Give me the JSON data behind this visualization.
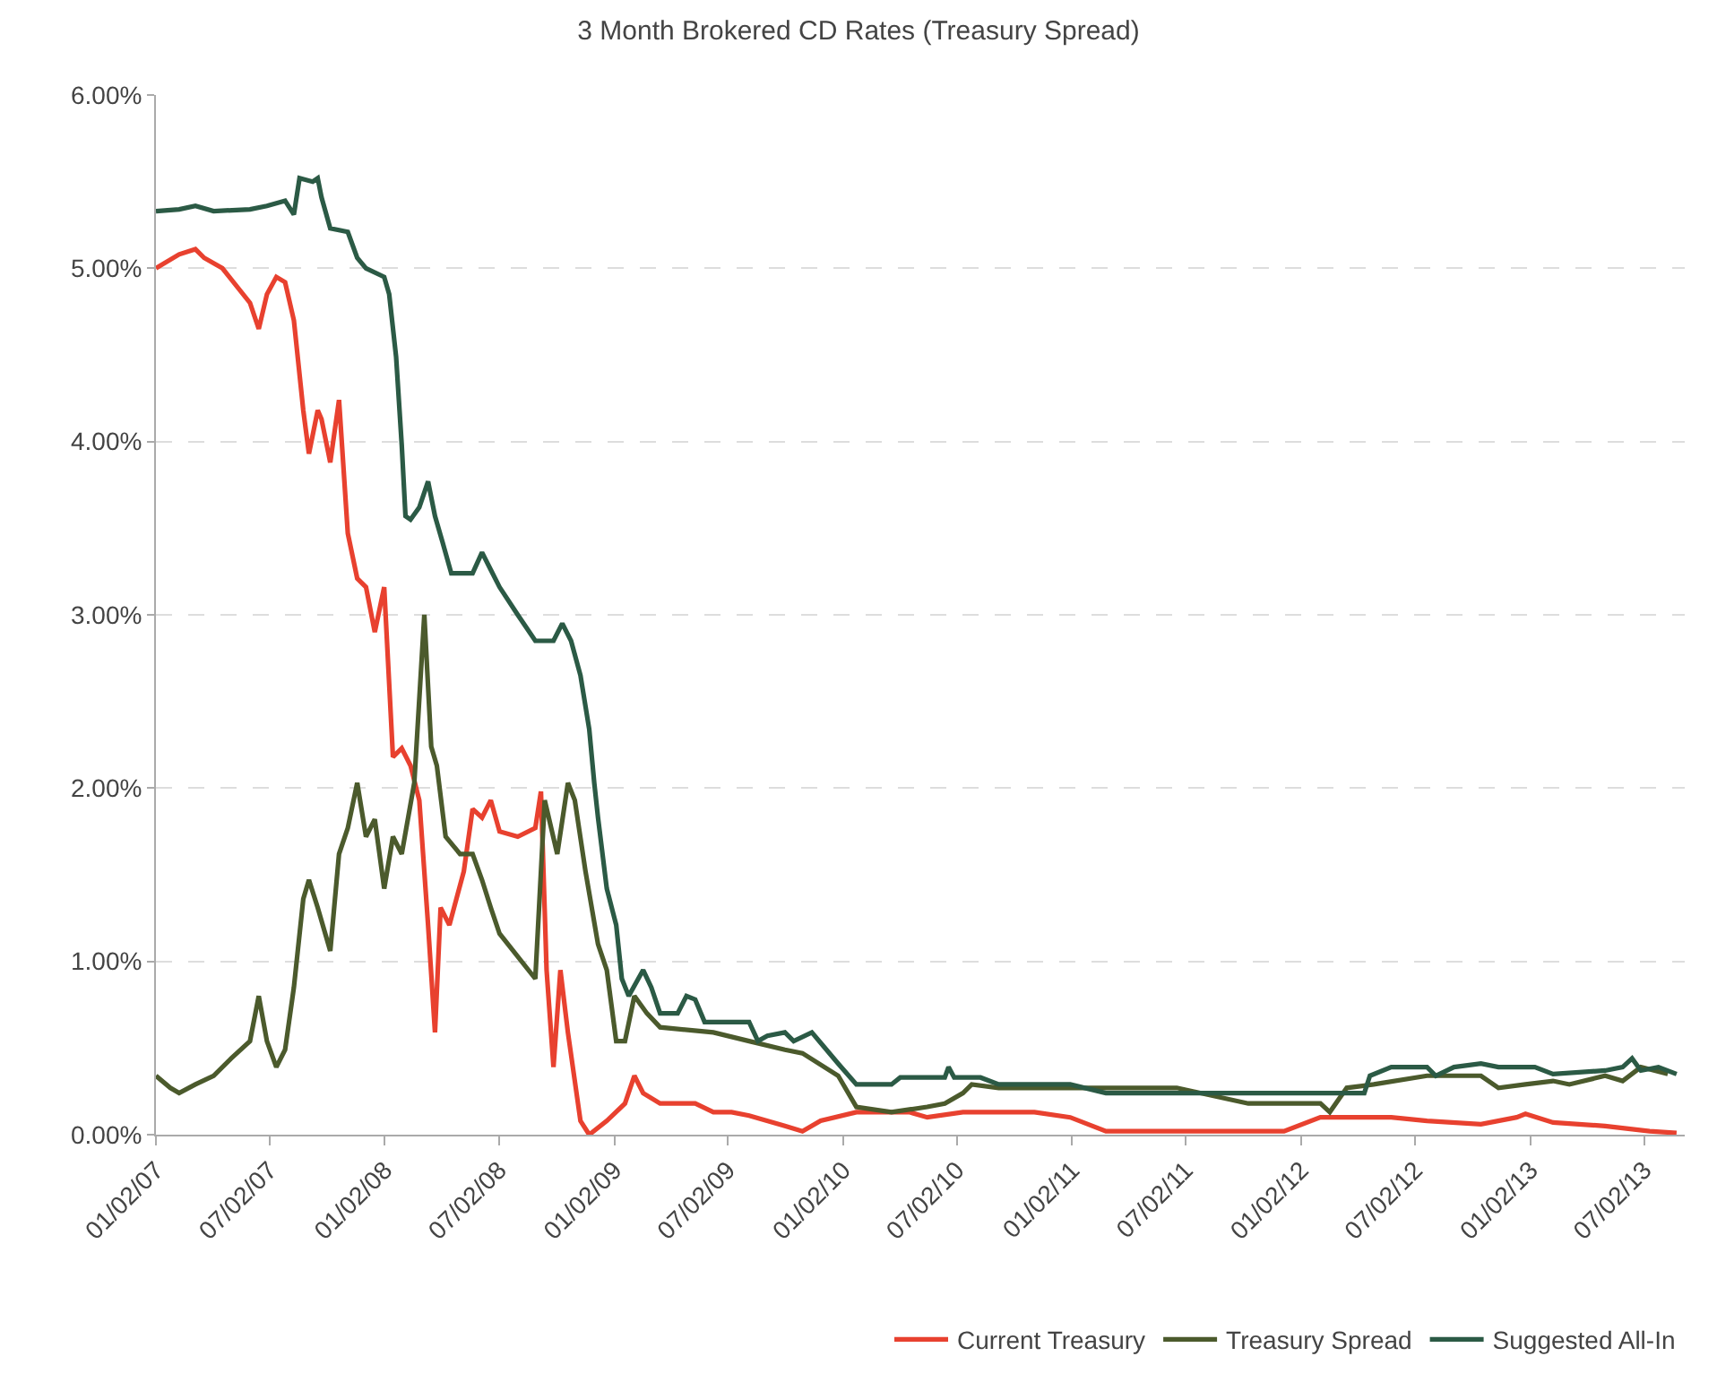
{
  "chart_data": {
    "type": "line",
    "title": "3 Month Brokered CD Rates (Treasury Spread)",
    "xlim": [
      "2007-01-02",
      "2013-09-05"
    ],
    "xticks": [
      {
        "value": "2007-01-02",
        "label": "01/02/07"
      },
      {
        "value": "2007-07-02",
        "label": "07/02/07"
      },
      {
        "value": "2008-01-02",
        "label": "01/02/08"
      },
      {
        "value": "2008-07-02",
        "label": "07/02/08"
      },
      {
        "value": "2009-01-02",
        "label": "01/02/09"
      },
      {
        "value": "2009-07-02",
        "label": "07/02/09"
      },
      {
        "value": "2010-01-02",
        "label": "01/02/10"
      },
      {
        "value": "2010-07-02",
        "label": "07/02/10"
      },
      {
        "value": "2011-01-02",
        "label": "01/02/11"
      },
      {
        "value": "2011-07-02",
        "label": "07/02/11"
      },
      {
        "value": "2012-01-02",
        "label": "01/02/12"
      },
      {
        "value": "2012-07-02",
        "label": "07/02/12"
      },
      {
        "value": "2013-01-02",
        "label": "01/02/13"
      },
      {
        "value": "2013-07-02",
        "label": "07/02/13"
      }
    ],
    "ylim": [
      0,
      6
    ],
    "yticks": [
      {
        "value": 0,
        "label": "0.00%"
      },
      {
        "value": 1,
        "label": "1.00%"
      },
      {
        "value": 2,
        "label": "2.00%"
      },
      {
        "value": 3,
        "label": "3.00%"
      },
      {
        "value": 4,
        "label": "4.00%"
      },
      {
        "value": 5,
        "label": "5.00%"
      },
      {
        "value": 6,
        "label": "6.00%"
      }
    ],
    "grid": "y",
    "legend": "bottom right",
    "line_style": "solid",
    "marker": "none",
    "series": [
      {
        "name": "Current Treasury",
        "color": "#e8412f",
        "x": [
          "2007-01-02",
          "2007-02-08",
          "2007-03-06",
          "2007-03-20",
          "2007-04-18",
          "2007-06-01",
          "2007-06-15",
          "2007-06-28",
          "2007-07-13",
          "2007-07-27",
          "2007-08-10",
          "2007-08-25",
          "2007-09-03",
          "2007-09-17",
          "2007-09-23",
          "2007-10-07",
          "2007-10-21",
          "2007-11-04",
          "2007-11-19",
          "2007-12-03",
          "2007-12-17",
          "2008-01-01",
          "2008-01-15",
          "2008-01-29",
          "2008-02-12",
          "2008-02-26",
          "2008-03-11",
          "2008-03-22",
          "2008-03-31",
          "2008-04-14",
          "2008-05-07",
          "2008-05-21",
          "2008-06-05",
          "2008-06-19",
          "2008-07-03",
          "2008-08-01",
          "2008-08-29",
          "2008-09-07",
          "2008-09-16",
          "2008-09-27",
          "2008-10-08",
          "2008-10-20",
          "2008-11-09",
          "2008-11-23",
          "2008-12-21",
          "2009-01-19",
          "2009-02-03",
          "2009-02-17",
          "2009-03-16",
          "2009-05-11",
          "2009-06-09",
          "2009-07-08",
          "2009-08-05",
          "2009-10-01",
          "2009-10-29",
          "2009-11-27",
          "2010-01-23",
          "2010-04-17",
          "2010-05-16",
          "2010-07-12",
          "2010-09-07",
          "2010-11-03",
          "2010-12-30",
          "2011-02-25",
          "2011-06-18",
          "2011-10-10",
          "2011-12-06",
          "2012-02-02",
          "2012-05-25",
          "2012-07-21",
          "2012-10-15",
          "2012-12-11",
          "2012-12-25",
          "2013-02-07",
          "2013-05-01",
          "2013-07-11",
          "2013-08-23"
        ],
        "values": [
          5.0,
          5.08,
          5.11,
          5.06,
          5.0,
          4.8,
          4.65,
          4.85,
          4.95,
          4.92,
          4.7,
          4.18,
          3.93,
          4.18,
          4.13,
          3.88,
          4.24,
          3.47,
          3.21,
          3.16,
          2.9,
          3.16,
          2.18,
          2.23,
          2.13,
          1.93,
          1.21,
          0.59,
          1.31,
          1.21,
          1.52,
          1.88,
          1.83,
          1.93,
          1.75,
          1.72,
          1.77,
          1.98,
          0.95,
          0.39,
          0.95,
          0.59,
          0.08,
          0.0,
          0.08,
          0.18,
          0.34,
          0.24,
          0.18,
          0.18,
          0.13,
          0.13,
          0.11,
          0.05,
          0.02,
          0.08,
          0.13,
          0.13,
          0.1,
          0.13,
          0.13,
          0.13,
          0.1,
          0.02,
          0.02,
          0.02,
          0.02,
          0.1,
          0.1,
          0.08,
          0.06,
          0.1,
          0.12,
          0.07,
          0.05,
          0.02,
          0.01
        ]
      },
      {
        "name": "Treasury Spread",
        "color": "#4b5a2c",
        "x": [
          "2007-01-02",
          "2007-01-25",
          "2007-02-08",
          "2007-03-06",
          "2007-04-04",
          "2007-05-02",
          "2007-06-01",
          "2007-06-15",
          "2007-06-28",
          "2007-07-13",
          "2007-07-27",
          "2007-08-10",
          "2007-08-25",
          "2007-09-03",
          "2007-09-17",
          "2007-10-07",
          "2007-10-21",
          "2007-11-04",
          "2007-11-19",
          "2007-12-03",
          "2007-12-17",
          "2008-01-01",
          "2008-01-15",
          "2008-01-29",
          "2008-02-18",
          "2008-03-05",
          "2008-03-16",
          "2008-03-25",
          "2008-04-08",
          "2008-05-01",
          "2008-05-21",
          "2008-06-05",
          "2008-06-19",
          "2008-07-03",
          "2008-08-29",
          "2008-09-13",
          "2008-10-03",
          "2008-10-20",
          "2008-10-31",
          "2008-11-17",
          "2008-12-07",
          "2008-12-21",
          "2009-01-05",
          "2009-01-19",
          "2009-02-03",
          "2009-02-23",
          "2009-03-16",
          "2009-06-09",
          "2009-08-05",
          "2009-10-01",
          "2009-10-29",
          "2009-12-25",
          "2010-01-23",
          "2010-03-20",
          "2010-05-16",
          "2010-06-13",
          "2010-07-12",
          "2010-07-26",
          "2010-09-07",
          "2010-11-03",
          "2010-12-30",
          "2011-06-18",
          "2011-10-10",
          "2012-02-02",
          "2012-02-17",
          "2012-03-15",
          "2012-04-27",
          "2012-07-21",
          "2012-10-15",
          "2012-11-12",
          "2012-12-25",
          "2013-02-07",
          "2013-03-05",
          "2013-05-01",
          "2013-05-29",
          "2013-06-27",
          "2013-08-09"
        ],
        "values": [
          0.34,
          0.27,
          0.24,
          0.29,
          0.34,
          0.44,
          0.54,
          0.8,
          0.54,
          0.39,
          0.49,
          0.85,
          1.36,
          1.47,
          1.31,
          1.06,
          1.62,
          1.77,
          2.03,
          1.72,
          1.82,
          1.42,
          1.72,
          1.62,
          2.03,
          3.0,
          2.24,
          2.13,
          1.72,
          1.62,
          1.62,
          1.47,
          1.31,
          1.16,
          0.9,
          1.93,
          1.62,
          2.03,
          1.93,
          1.52,
          1.1,
          0.95,
          0.54,
          0.54,
          0.8,
          0.7,
          0.62,
          0.59,
          0.54,
          0.49,
          0.47,
          0.34,
          0.16,
          0.13,
          0.16,
          0.18,
          0.24,
          0.29,
          0.27,
          0.27,
          0.27,
          0.27,
          0.18,
          0.18,
          0.13,
          0.27,
          0.29,
          0.34,
          0.34,
          0.27,
          0.29,
          0.31,
          0.29,
          0.34,
          0.31,
          0.39,
          0.35
        ]
      },
      {
        "name": "Suggested All-In",
        "color": "#2b5a45",
        "x": [
          "2007-01-02",
          "2007-02-08",
          "2007-03-06",
          "2007-04-04",
          "2007-06-01",
          "2007-06-28",
          "2007-07-27",
          "2007-08-10",
          "2007-08-19",
          "2007-09-09",
          "2007-09-17",
          "2007-09-23",
          "2007-10-07",
          "2007-11-04",
          "2007-11-19",
          "2007-12-03",
          "2008-01-01",
          "2008-01-09",
          "2008-01-20",
          "2008-01-29",
          "2008-02-04",
          "2008-02-12",
          "2008-02-26",
          "2008-03-11",
          "2008-03-22",
          "2008-04-03",
          "2008-04-17",
          "2008-05-21",
          "2008-06-05",
          "2008-06-19",
          "2008-07-03",
          "2008-08-01",
          "2008-08-29",
          "2008-09-27",
          "2008-10-11",
          "2008-10-25",
          "2008-11-09",
          "2008-11-23",
          "2008-12-01",
          "2008-12-07",
          "2008-12-21",
          "2009-01-05",
          "2009-01-14",
          "2009-01-25",
          "2009-02-17",
          "2009-03-02",
          "2009-03-16",
          "2009-04-13",
          "2009-04-27",
          "2009-05-11",
          "2009-05-26",
          "2009-08-05",
          "2009-08-19",
          "2009-09-03",
          "2009-10-01",
          "2009-10-15",
          "2009-11-13",
          "2009-11-27",
          "2009-12-25",
          "2010-01-23",
          "2010-03-20",
          "2010-04-03",
          "2010-06-13",
          "2010-06-19",
          "2010-06-28",
          "2010-08-09",
          "2010-09-07",
          "2010-12-30",
          "2011-02-25",
          "2011-04-22",
          "2011-07-02",
          "2011-10-10",
          "2012-04-12",
          "2012-04-21",
          "2012-05-25",
          "2012-07-21",
          "2012-08-04",
          "2012-09-02",
          "2012-10-15",
          "2012-11-12",
          "2013-01-09",
          "2013-02-07",
          "2013-05-01",
          "2013-05-29",
          "2013-06-13",
          "2013-06-27",
          "2013-07-25",
          "2013-08-23"
        ],
        "values": [
          5.33,
          5.34,
          5.36,
          5.33,
          5.34,
          5.36,
          5.39,
          5.31,
          5.52,
          5.5,
          5.52,
          5.41,
          5.23,
          5.21,
          5.06,
          5.0,
          4.95,
          4.85,
          4.49,
          3.98,
          3.57,
          3.55,
          3.62,
          3.77,
          3.57,
          3.42,
          3.24,
          3.24,
          3.36,
          3.26,
          3.16,
          3.0,
          2.85,
          2.85,
          2.95,
          2.85,
          2.65,
          2.34,
          2.03,
          1.83,
          1.42,
          1.21,
          0.9,
          0.8,
          0.95,
          0.85,
          0.7,
          0.7,
          0.8,
          0.78,
          0.65,
          0.65,
          0.54,
          0.57,
          0.59,
          0.54,
          0.59,
          0.53,
          0.41,
          0.29,
          0.29,
          0.33,
          0.33,
          0.39,
          0.33,
          0.33,
          0.29,
          0.29,
          0.24,
          0.24,
          0.24,
          0.24,
          0.24,
          0.34,
          0.39,
          0.39,
          0.34,
          0.39,
          0.41,
          0.39,
          0.39,
          0.35,
          0.37,
          0.39,
          0.44,
          0.37,
          0.39,
          0.35
        ]
      }
    ]
  }
}
